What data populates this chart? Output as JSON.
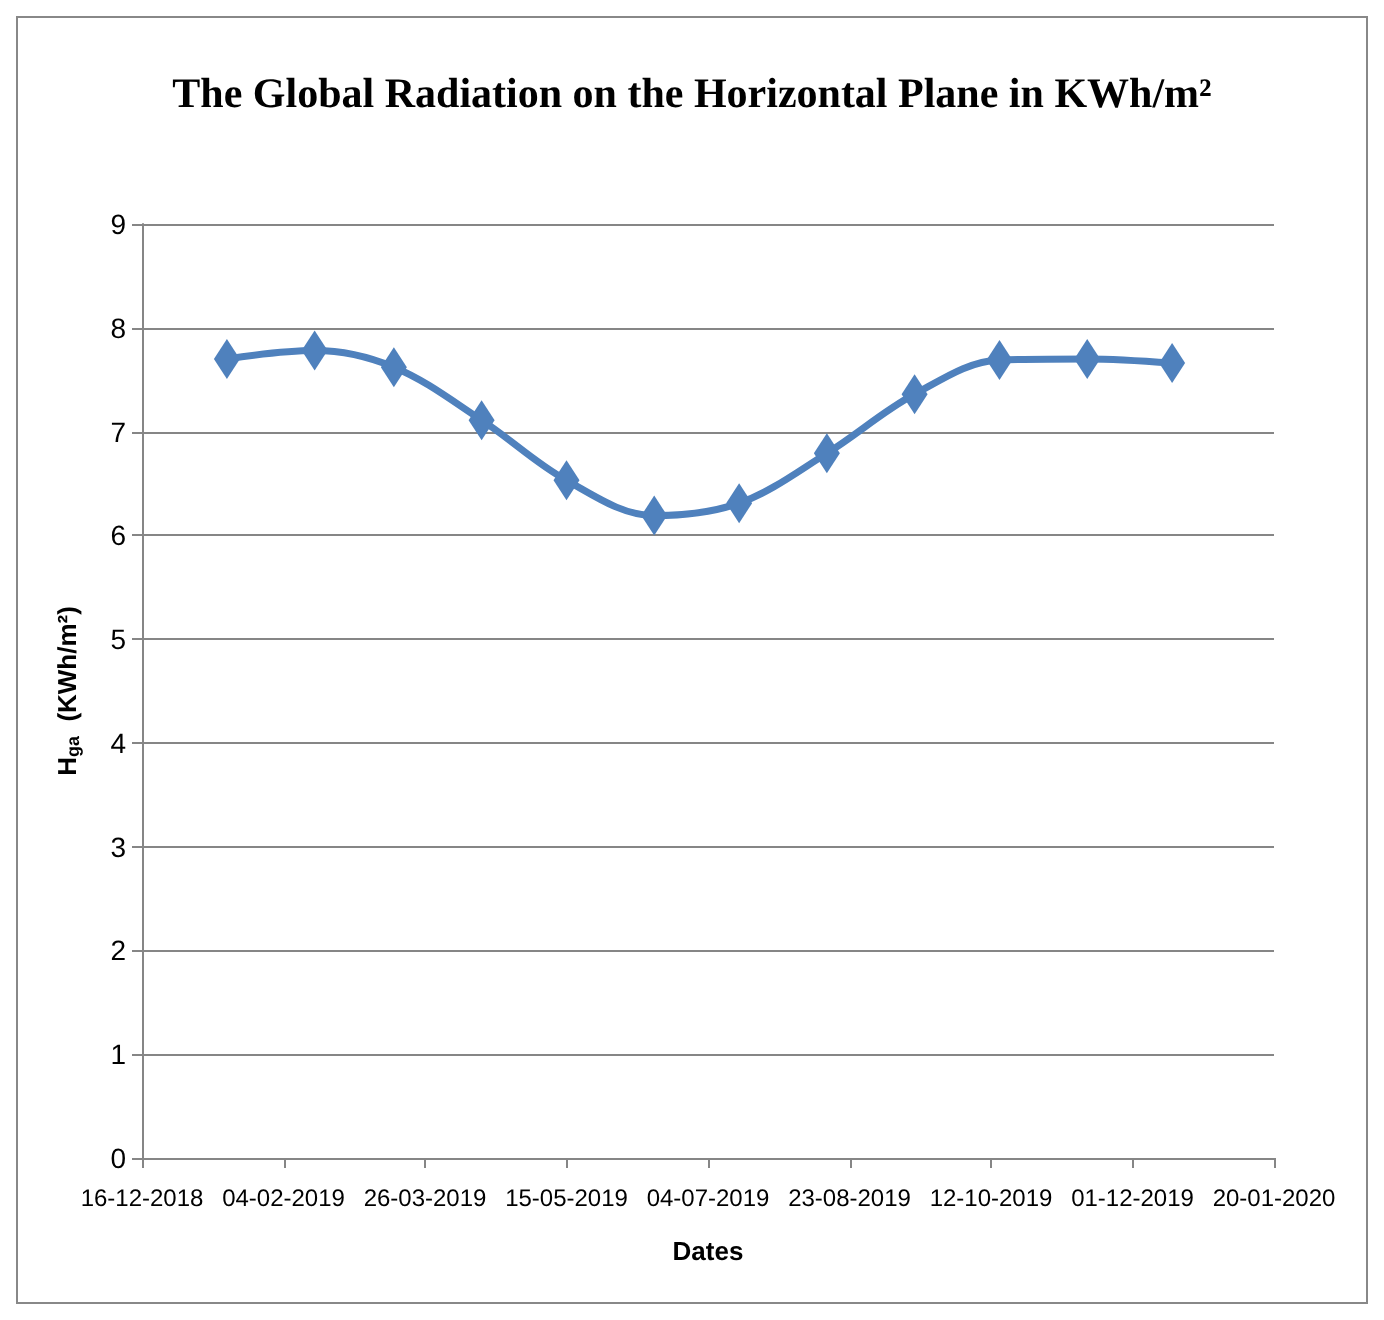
{
  "chart_data": {
    "type": "line",
    "title": "The Global Radiation on the Horizontal Plane in KWh/m²",
    "xlabel": "Dates",
    "ylabel": "H$_{ga}$  (KWh/m²)",
    "x": [
      "2019-01-15",
      "2019-02-15",
      "2019-03-15",
      "2019-04-15",
      "2019-05-15",
      "2019-06-15",
      "2019-07-15",
      "2019-08-15",
      "2019-09-15",
      "2019-10-15",
      "2019-11-15",
      "2019-12-15"
    ],
    "series": [
      {
        "color": "#4f81bd",
        "values": [
          7.7,
          7.78,
          7.62,
          7.11,
          6.53,
          6.19,
          6.31,
          6.79,
          7.36,
          7.69,
          7.7,
          7.66
        ]
      }
    ],
    "xlim": [
      "2018-12-16",
      "2020-01-20"
    ],
    "xticks": [
      {
        "value": "2018-12-16",
        "label": "16-12-2018"
      },
      {
        "value": "2019-02-04",
        "label": "04-02-2019"
      },
      {
        "value": "2019-03-26",
        "label": "26-03-2019"
      },
      {
        "value": "2019-05-15",
        "label": "15-05-2019"
      },
      {
        "value": "2019-07-04",
        "label": "04-07-2019"
      },
      {
        "value": "2019-08-23",
        "label": "23-08-2019"
      },
      {
        "value": "2019-10-12",
        "label": "12-10-2019"
      },
      {
        "value": "2019-12-01",
        "label": "01-12-2019"
      },
      {
        "value": "2020-01-20",
        "label": "20-01-2020"
      }
    ],
    "ylim": [
      0,
      9
    ],
    "yticks": [
      0,
      1,
      2,
      3,
      4,
      5,
      6,
      7,
      8,
      9
    ],
    "grid": "y",
    "marker": "diamond",
    "line_style": "solid"
  }
}
